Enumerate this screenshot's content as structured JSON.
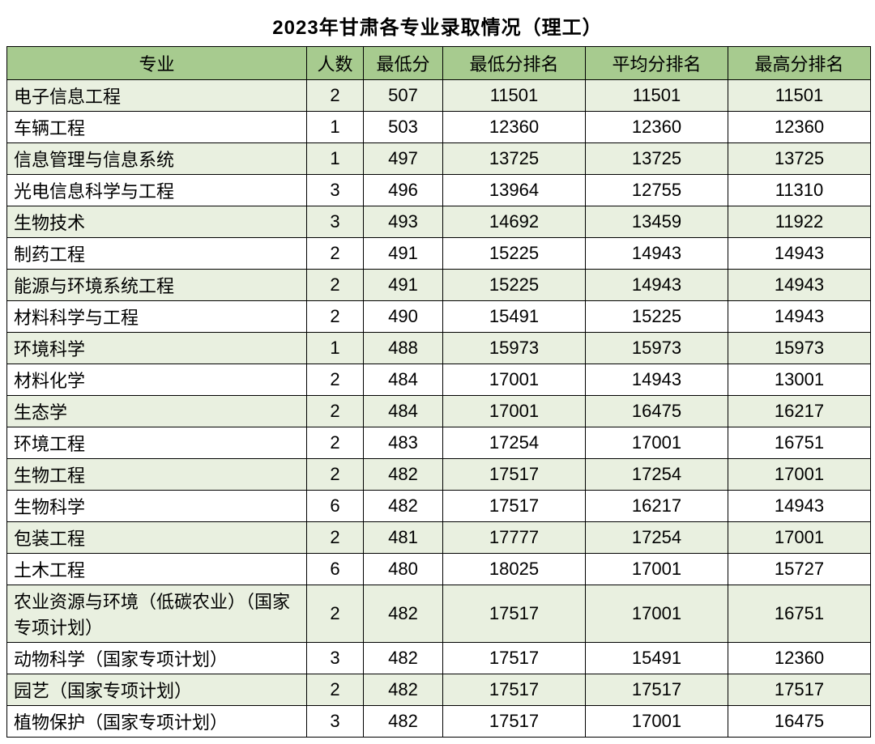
{
  "title": "2023年甘肃各专业录取情况（理工）",
  "table": {
    "columns": [
      "专业",
      "人数",
      "最低分",
      "最低分排名",
      "平均分排名",
      "最高分排名"
    ],
    "header_bg": "#a7cb8f",
    "row_odd_bg": "#e9f0e0",
    "row_even_bg": "#ffffff",
    "border_color": "#000000",
    "font_size": 22,
    "title_font_size": 24,
    "rows": [
      {
        "major": "电子信息工程",
        "count": "2",
        "min": "507",
        "minrank": "11501",
        "avgrank": "11501",
        "maxrank": "11501",
        "tall": false
      },
      {
        "major": "车辆工程",
        "count": "1",
        "min": "503",
        "minrank": "12360",
        "avgrank": "12360",
        "maxrank": "12360",
        "tall": false
      },
      {
        "major": "信息管理与信息系统",
        "count": "1",
        "min": "497",
        "minrank": "13725",
        "avgrank": "13725",
        "maxrank": "13725",
        "tall": false
      },
      {
        "major": "光电信息科学与工程",
        "count": "3",
        "min": "496",
        "minrank": "13964",
        "avgrank": "12755",
        "maxrank": "11310",
        "tall": false
      },
      {
        "major": "生物技术",
        "count": "3",
        "min": "493",
        "minrank": "14692",
        "avgrank": "13459",
        "maxrank": "11922",
        "tall": false
      },
      {
        "major": "制药工程",
        "count": "2",
        "min": "491",
        "minrank": "15225",
        "avgrank": "14943",
        "maxrank": "14943",
        "tall": false
      },
      {
        "major": "能源与环境系统工程",
        "count": "2",
        "min": "491",
        "minrank": "15225",
        "avgrank": "14943",
        "maxrank": "14943",
        "tall": false
      },
      {
        "major": "材料科学与工程",
        "count": "2",
        "min": "490",
        "minrank": "15491",
        "avgrank": "15225",
        "maxrank": "14943",
        "tall": false
      },
      {
        "major": "环境科学",
        "count": "1",
        "min": "488",
        "minrank": "15973",
        "avgrank": "15973",
        "maxrank": "15973",
        "tall": false
      },
      {
        "major": "材料化学",
        "count": "2",
        "min": "484",
        "minrank": "17001",
        "avgrank": "14943",
        "maxrank": "13001",
        "tall": false
      },
      {
        "major": "生态学",
        "count": "2",
        "min": "484",
        "minrank": "17001",
        "avgrank": "16475",
        "maxrank": "16217",
        "tall": false
      },
      {
        "major": "环境工程",
        "count": "2",
        "min": "483",
        "minrank": "17254",
        "avgrank": "17001",
        "maxrank": "16751",
        "tall": false
      },
      {
        "major": "生物工程",
        "count": "2",
        "min": "482",
        "minrank": "17517",
        "avgrank": "17254",
        "maxrank": "17001",
        "tall": false
      },
      {
        "major": "生物科学",
        "count": "6",
        "min": "482",
        "minrank": "17517",
        "avgrank": "16217",
        "maxrank": "14943",
        "tall": false
      },
      {
        "major": "包装工程",
        "count": "2",
        "min": "481",
        "minrank": "17777",
        "avgrank": "17254",
        "maxrank": "17001",
        "tall": false
      },
      {
        "major": "土木工程",
        "count": "6",
        "min": "480",
        "minrank": "18025",
        "avgrank": "17001",
        "maxrank": "15727",
        "tall": false
      },
      {
        "major": "农业资源与环境（低碳农业）（国家专项计划）",
        "count": "2",
        "min": "482",
        "minrank": "17517",
        "avgrank": "17001",
        "maxrank": "16751",
        "tall": true
      },
      {
        "major": "动物科学（国家专项计划）",
        "count": "3",
        "min": "482",
        "minrank": "17517",
        "avgrank": "15491",
        "maxrank": "12360",
        "tall": false
      },
      {
        "major": "园艺（国家专项计划）",
        "count": "2",
        "min": "482",
        "minrank": "17517",
        "avgrank": "17517",
        "maxrank": "17517",
        "tall": false
      },
      {
        "major": "植物保护（国家专项计划）",
        "count": "3",
        "min": "482",
        "minrank": "17517",
        "avgrank": "17001",
        "maxrank": "16475",
        "tall": false
      }
    ]
  }
}
